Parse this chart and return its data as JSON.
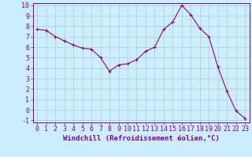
{
  "x": [
    0,
    1,
    2,
    3,
    4,
    5,
    6,
    7,
    8,
    9,
    10,
    11,
    12,
    13,
    14,
    15,
    16,
    17,
    18,
    19,
    20,
    21,
    22,
    23
  ],
  "y": [
    7.7,
    7.6,
    7.0,
    6.6,
    6.2,
    5.9,
    5.8,
    5.0,
    3.7,
    4.3,
    4.4,
    4.8,
    5.6,
    6.0,
    7.7,
    8.4,
    10.0,
    9.1,
    7.8,
    7.0,
    4.1,
    1.8,
    -0.1,
    -0.8
  ],
  "line_color": "#8b008b",
  "marker": "+",
  "marker_size": 3,
  "background_color": "#cceeff",
  "grid_color": "#aacccc",
  "xlabel": "Windchill (Refroidissement éolien,°C)",
  "xlabel_color": "#7700aa",
  "tick_color": "#7700aa",
  "spine_color": "#7700aa",
  "ylim": [
    -1,
    10
  ],
  "xlim": [
    -0.5,
    23.5
  ],
  "yticks": [
    -1,
    0,
    1,
    2,
    3,
    4,
    5,
    6,
    7,
    8,
    9,
    10
  ],
  "xticks": [
    0,
    1,
    2,
    3,
    4,
    5,
    6,
    7,
    8,
    9,
    10,
    11,
    12,
    13,
    14,
    15,
    16,
    17,
    18,
    19,
    20,
    21,
    22,
    23
  ],
  "tick_fontsize": 6,
  "xlabel_fontsize": 6.5
}
